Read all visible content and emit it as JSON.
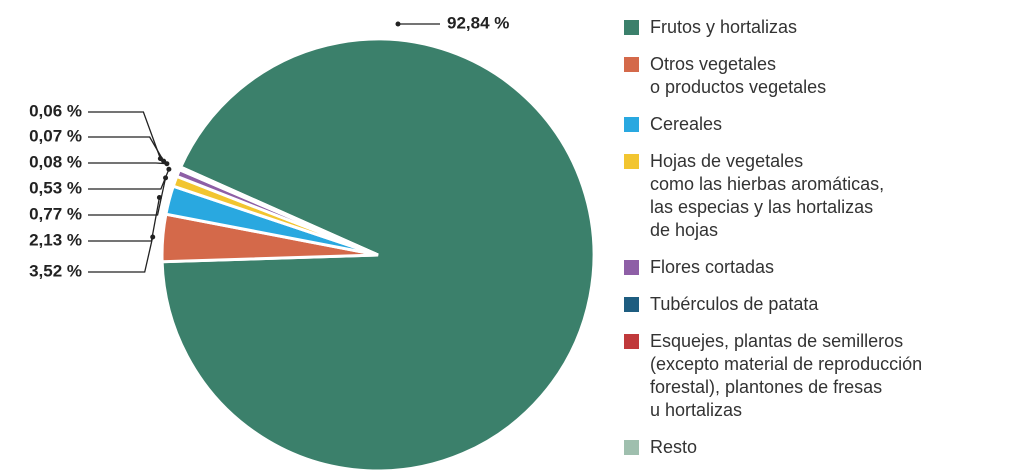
{
  "chart_data": {
    "type": "pie",
    "series": [
      {
        "name": "Frutos y hortalizas",
        "color": "#3b806b"
      },
      {
        "name": "Otros vegetales\no productos vegetales",
        "color": "#d4694a"
      },
      {
        "name": "Cereales",
        "color": "#29a8e0"
      },
      {
        "name": "Hojas de vegetales\ncomo las hierbas aromáticas,\nlas especias y las hortalizas\nde hojas",
        "color": "#f2c530"
      },
      {
        "name": "Flores cortadas",
        "color": "#8e5fa6"
      },
      {
        "name": "Tubérculos de patata",
        "color": "#1e5d80"
      },
      {
        "name": "Esquejes, plantas de semilleros\n(excepto material de reproducción\nforestal), plantones de fresas\nu hortalizas",
        "color": "#c0393b"
      },
      {
        "name": "Resto",
        "color": "#9fbfae"
      }
    ],
    "values": [
      92.84,
      3.52,
      2.13,
      0.77,
      0.53,
      0.08,
      0.07,
      0.06
    ],
    "value_labels": [
      "92,84 %",
      "3,52 %",
      "2,13 %",
      "0,77 %",
      "0,53 %",
      "0,08 %",
      "0,07 %",
      "0,06 %"
    ]
  }
}
